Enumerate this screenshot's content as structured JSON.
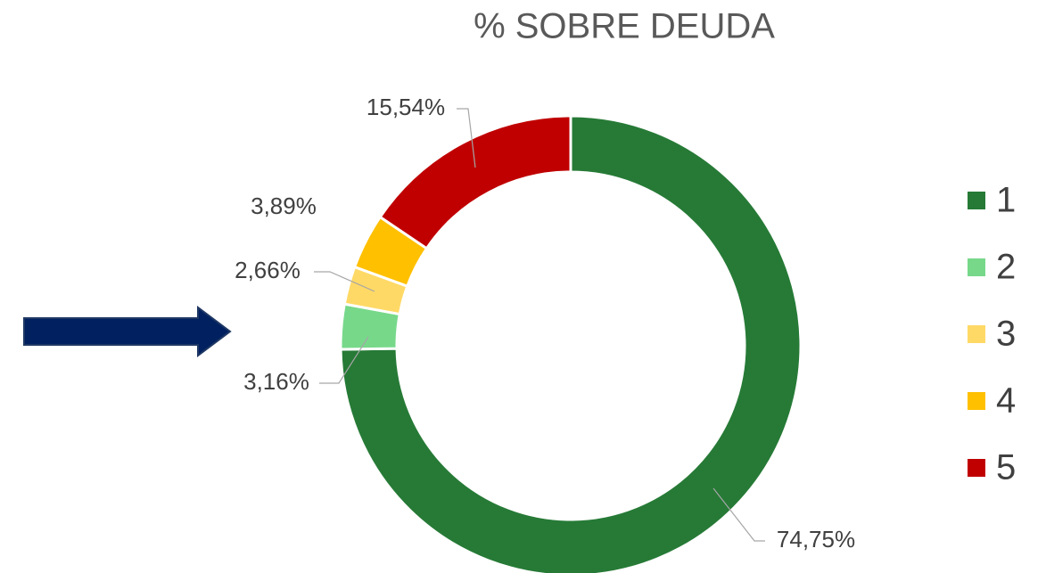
{
  "chart_data": {
    "type": "donut",
    "title": "% SOBRE DEUDA",
    "categories": [
      "1",
      "2",
      "3",
      "4",
      "5"
    ],
    "values": [
      74.75,
      3.16,
      2.66,
      3.89,
      15.54
    ],
    "value_labels": [
      "74,75%",
      "3,16%",
      "2,66%",
      "3,89%",
      "15,54%"
    ],
    "colors": [
      "#267a36",
      "#77d88a",
      "#ffd966",
      "#ffc000",
      "#c00000"
    ],
    "legend": "right"
  }
}
